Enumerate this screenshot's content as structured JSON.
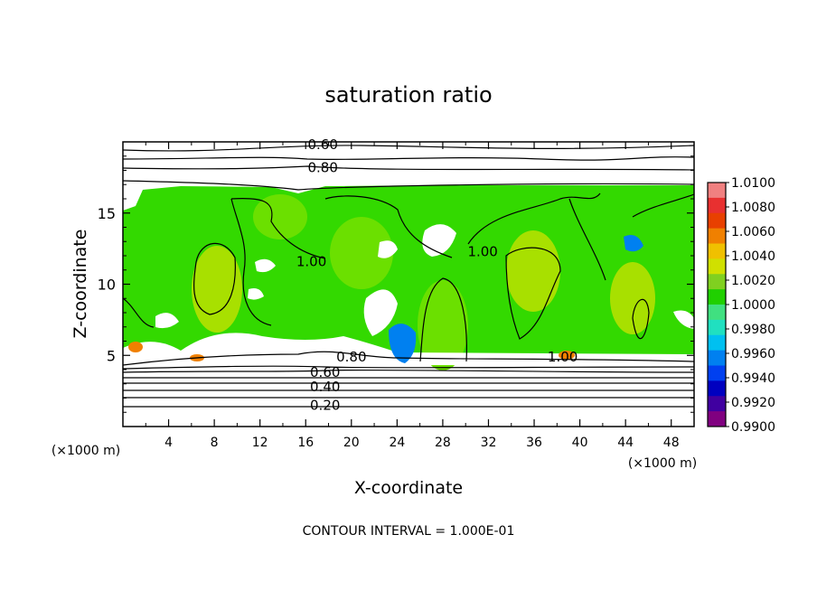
{
  "chart_data": {
    "type": "heatmap",
    "title": "saturation ratio",
    "xlabel": "X-coordinate",
    "ylabel": "Z-coordinate",
    "x_unit_left": "(×1000 m)",
    "x_unit_right": "(×1000 m)",
    "footer": "CONTOUR INTERVAL = 1.000E-01",
    "xlim": [
      0,
      50
    ],
    "ylim": [
      0,
      20
    ],
    "x_ticks": [
      4,
      8,
      12,
      16,
      20,
      24,
      28,
      32,
      36,
      40,
      44,
      48
    ],
    "y_ticks": [
      5,
      10,
      15
    ],
    "contour_labels": [
      {
        "text": "0.60",
        "x": 17.5,
        "y": 19.8
      },
      {
        "text": "0.80",
        "x": 17.5,
        "y": 18.2
      },
      {
        "text": "1.00",
        "x": 16.5,
        "y": 11.6
      },
      {
        "text": "1.00",
        "x": 31.5,
        "y": 12.3
      },
      {
        "text": "0.80",
        "x": 20.0,
        "y": 4.9
      },
      {
        "text": "1.00",
        "x": 38.5,
        "y": 4.9
      },
      {
        "text": "0.60",
        "x": 17.7,
        "y": 3.8
      },
      {
        "text": "0.40",
        "x": 17.7,
        "y": 2.8
      },
      {
        "text": "0.20",
        "x": 17.7,
        "y": 1.5
      }
    ],
    "colorbar": {
      "min": 0.99,
      "max": 1.01,
      "labels": [
        "1.0100",
        "1.0080",
        "1.0060",
        "1.0040",
        "1.0020",
        "1.0000",
        "0.9980",
        "0.9960",
        "0.9940",
        "0.9920",
        "0.9900"
      ],
      "colors": [
        "#f08080",
        "#e83030",
        "#e84000",
        "#f08000",
        "#f0c000",
        "#d0e000",
        "#80d020",
        "#20d000",
        "#40e080",
        "#20e0c0",
        "#00c0f0",
        "#0080f0",
        "#0040f0",
        "#0000c0",
        "#4000a0",
        "#800080"
      ]
    },
    "field_colors": {
      "supersaturated": "#33d900",
      "near_saturated": "#6be000",
      "slightly_high": "#a8e000",
      "warm": "#e0e000",
      "subsaturated": "#ffffff",
      "low_blue": "#0080f0"
    }
  }
}
